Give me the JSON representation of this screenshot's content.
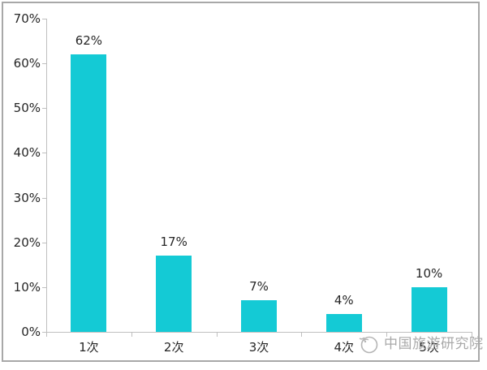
{
  "chart_data": {
    "type": "bar",
    "categories": [
      "1次",
      "2次",
      "3次",
      "4次",
      "5次"
    ],
    "values": [
      62,
      17,
      7,
      4,
      10
    ],
    "value_labels": [
      "62%",
      "17%",
      "7%",
      "4%",
      "10%"
    ],
    "title": "",
    "xlabel": "",
    "ylabel": "",
    "ylim": [
      0,
      70
    ],
    "yticks": [
      0,
      10,
      20,
      30,
      40,
      50,
      60,
      70
    ],
    "ytick_labels": [
      "0%",
      "10%",
      "20%",
      "30%",
      "40%",
      "50%",
      "60%",
      "70%"
    ],
    "grid": false,
    "legend": false,
    "bar_color": "#14cad5"
  },
  "watermark": {
    "text": "中国旅游研究院"
  },
  "colors": {
    "axis": "#bfbfbf",
    "label": "#262626",
    "frame": "#a8a8a8",
    "watermark": "#a9a9a9"
  }
}
